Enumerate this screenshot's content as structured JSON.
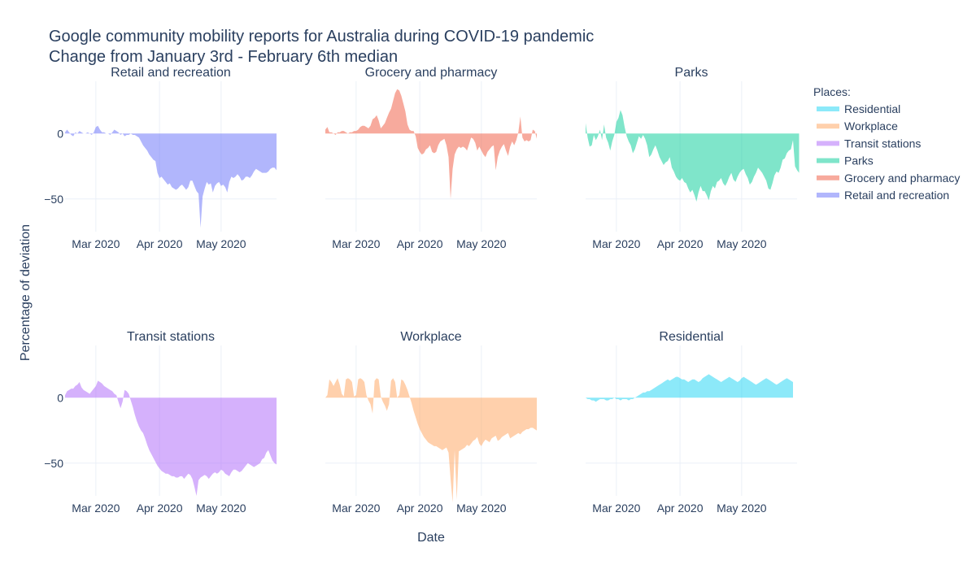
{
  "chart_data": {
    "type": "area",
    "title": "Google community mobility reports for Australia during COVID-19 pandemic",
    "subtitle": "Change from January 3rd - February 6th median",
    "xlabel": "Date",
    "ylabel": "Percentage of deviation",
    "x_range": [
      "2020-02-15",
      "2020-05-28"
    ],
    "ylim": [
      -75,
      40
    ],
    "x_ticks": [
      {
        "date": "2020-03-01",
        "label": "Mar 2020"
      },
      {
        "date": "2020-04-01",
        "label": "Apr 2020"
      },
      {
        "date": "2020-05-01",
        "label": "May 2020"
      }
    ],
    "y_ticks": [
      0,
      -50
    ],
    "grid": true,
    "legend": {
      "title": "Places:",
      "placement": "right",
      "entries": [
        "Residential",
        "Workplace",
        "Transit stations",
        "Parks",
        "Grocery and pharmacy",
        "Retail and recreation"
      ]
    },
    "start_date": "2020-02-15",
    "panels": [
      {
        "title": "Retail and recreation",
        "color": "#636efa",
        "values": [
          1,
          3,
          1,
          -1,
          -2,
          1,
          0,
          2,
          1,
          0,
          0,
          1,
          0,
          -1,
          1,
          5,
          6,
          3,
          1,
          1,
          0,
          0,
          -1,
          1,
          3,
          2,
          1,
          -1,
          0,
          -2,
          -1,
          -1,
          0,
          -1,
          -1,
          -2,
          -3,
          -6,
          -9,
          -11,
          -13,
          -16,
          -18,
          -20,
          -21,
          -30,
          -34,
          -33,
          -35,
          -37,
          -39,
          -38,
          -41,
          -42,
          -43,
          -42,
          -40,
          -39,
          -41,
          -43,
          -41,
          -36,
          -36,
          -40,
          -44,
          -46,
          -72,
          -48,
          -42,
          -37,
          -39,
          -38,
          -45,
          -40,
          -38,
          -37,
          -40,
          -39,
          -41,
          -45,
          -37,
          -33,
          -34,
          -33,
          -31,
          -33,
          -36,
          -35,
          -33,
          -33,
          -34,
          -32,
          -29,
          -27,
          -28,
          -29,
          -30,
          -30,
          -30,
          -29,
          -27,
          -26,
          -26,
          -28
        ]
      },
      {
        "title": "Grocery and pharmacy",
        "color": "#ef553b",
        "values": [
          3,
          5,
          1,
          1,
          0,
          -1,
          1,
          1,
          2,
          2,
          1,
          0,
          1,
          1,
          2,
          2,
          3,
          5,
          6,
          6,
          5,
          4,
          6,
          11,
          12,
          14,
          10,
          4,
          6,
          8,
          12,
          16,
          19,
          25,
          31,
          34,
          33,
          29,
          23,
          17,
          7,
          3,
          2,
          2,
          -2,
          -11,
          -14,
          -16,
          -15,
          -12,
          -11,
          -9,
          -14,
          -15,
          -14,
          -9,
          -6,
          -5,
          -4,
          -9,
          -18,
          -50,
          -27,
          -16,
          -12,
          -10,
          -11,
          -10,
          -11,
          -13,
          -8,
          -3,
          -4,
          -7,
          -13,
          -10,
          -13,
          -16,
          -18,
          -14,
          -12,
          -10,
          -9,
          -28,
          -18,
          -13,
          -10,
          -8,
          -13,
          -17,
          -10,
          -6,
          -9,
          -5,
          1,
          13,
          -3,
          -6,
          -5,
          -6,
          -5,
          3,
          2,
          -4
        ]
      },
      {
        "title": "Parks",
        "color": "#00cc96",
        "values": [
          8,
          -3,
          -10,
          -9,
          -1,
          -5,
          -2,
          3,
          -5,
          7,
          -3,
          -7,
          -13,
          -6,
          -1,
          9,
          12,
          18,
          14,
          5,
          -2,
          -6,
          -9,
          -15,
          -12,
          -7,
          -2,
          -4,
          -1,
          -4,
          -9,
          -18,
          -16,
          -12,
          -9,
          -13,
          -18,
          -21,
          -24,
          -22,
          -21,
          -18,
          -26,
          -29,
          -33,
          -35,
          -36,
          -34,
          -37,
          -38,
          -42,
          -45,
          -43,
          -47,
          -52,
          -45,
          -40,
          -44,
          -44,
          -47,
          -51,
          -44,
          -40,
          -42,
          -37,
          -36,
          -34,
          -38,
          -40,
          -37,
          -33,
          -30,
          -35,
          -37,
          -33,
          -30,
          -28,
          -27,
          -31,
          -34,
          -39,
          -37,
          -33,
          -30,
          -26,
          -28,
          -30,
          -33,
          -36,
          -42,
          -43,
          -38,
          -32,
          -29,
          -30,
          -26,
          -20,
          -19,
          -15,
          -13,
          -12,
          -5,
          -25,
          -28,
          -30
        ]
      },
      {
        "title": "Transit stations",
        "color": "#ab63fa",
        "values": [
          2,
          5,
          6,
          7,
          7,
          9,
          10,
          12,
          8,
          6,
          5,
          4,
          3,
          5,
          7,
          9,
          13,
          12,
          11,
          9,
          8,
          7,
          6,
          5,
          3,
          2,
          -3,
          -8,
          -3,
          6,
          5,
          3,
          -2,
          -7,
          -13,
          -18,
          -22,
          -25,
          -27,
          -31,
          -36,
          -40,
          -43,
          -46,
          -49,
          -52,
          -54,
          -56,
          -57,
          -58,
          -58,
          -59,
          -60,
          -60,
          -61,
          -61,
          -60,
          -60,
          -62,
          -60,
          -58,
          -59,
          -62,
          -68,
          -75,
          -63,
          -61,
          -60,
          -59,
          -60,
          -62,
          -60,
          -58,
          -57,
          -58,
          -57,
          -55,
          -56,
          -58,
          -59,
          -60,
          -57,
          -55,
          -55,
          -56,
          -57,
          -56,
          -54,
          -52,
          -50,
          -51,
          -52,
          -53,
          -52,
          -51,
          -50,
          -47,
          -46,
          -42,
          -40,
          -44,
          -48,
          -50,
          -51
        ]
      },
      {
        "title": "Workplace",
        "color": "#ffa15a",
        "values": [
          0,
          2,
          14,
          12,
          9,
          12,
          15,
          10,
          3,
          1,
          14,
          15,
          14,
          12,
          1,
          2,
          14,
          15,
          14,
          12,
          2,
          -2,
          -5,
          -12,
          13,
          15,
          14,
          1,
          -3,
          -6,
          -10,
          -5,
          13,
          15,
          12,
          0,
          2,
          14,
          13,
          10,
          6,
          1,
          -4,
          -10,
          -15,
          -20,
          -24,
          -27,
          -30,
          -32,
          -34,
          -35,
          -36,
          -37,
          -37,
          -38,
          -39,
          -40,
          -39,
          -38,
          -42,
          -62,
          -80,
          -40,
          -78,
          -41,
          -40,
          -39,
          -38,
          -36,
          -37,
          -35,
          -33,
          -32,
          -30,
          -35,
          -37,
          -34,
          -32,
          -33,
          -34,
          -31,
          -30,
          -29,
          -33,
          -32,
          -30,
          -29,
          -28,
          -27,
          -31,
          -30,
          -29,
          -28,
          -27,
          -28,
          -26,
          -25,
          -24,
          -24,
          -23,
          -23,
          -24,
          -25
        ]
      },
      {
        "title": "Residential",
        "color": "#19d3f3",
        "values": [
          0,
          -1,
          -1,
          -2,
          -2,
          -3,
          -2,
          -1,
          -1,
          -1,
          -2,
          -2,
          -1,
          -1,
          0,
          -1,
          -1,
          -2,
          -1,
          -1,
          -1,
          -2,
          -1,
          -1,
          0,
          1,
          2,
          3,
          4,
          4,
          5,
          5,
          6,
          7,
          8,
          9,
          10,
          11,
          12,
          13,
          14,
          13,
          14,
          15,
          16,
          16,
          15,
          14,
          14,
          13,
          12,
          13,
          14,
          14,
          13,
          12,
          13,
          15,
          16,
          17,
          18,
          17,
          16,
          15,
          14,
          13,
          12,
          13,
          14,
          15,
          16,
          15,
          14,
          13,
          12,
          13,
          15,
          16,
          15,
          14,
          13,
          12,
          11,
          10,
          11,
          12,
          13,
          14,
          15,
          14,
          13,
          12,
          11,
          10,
          11,
          12,
          13,
          14,
          15,
          14,
          13,
          12
        ]
      }
    ]
  }
}
